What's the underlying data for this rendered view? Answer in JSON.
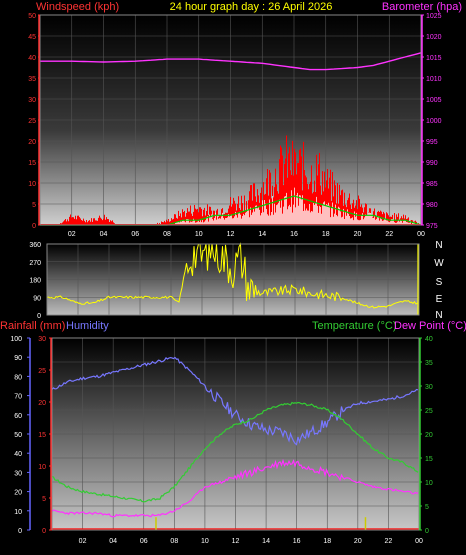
{
  "header": {
    "left_label": "Windspeed (kph)",
    "center_label": "24 hour graph day : 26 April 2026",
    "right_label": "Barometer (hpa)"
  },
  "bottom_header": {
    "rain_label": "Rainfall (mm)",
    "humidity_label": "Humidity",
    "temp_label": "Temperature (°C)",
    "dew_label": "Dew Point (°C)"
  },
  "colors": {
    "wind": "#ff0000",
    "gust": "#00cc00",
    "pressure": "#ff33ff",
    "direction": "#ffff00",
    "humidity": "#7777ff",
    "temperature": "#33cc33",
    "dewpoint": "#ff33ff",
    "rain_axis": "#ff3333",
    "hum_axis": "#6666ff",
    "temp_axis": "#33cc33",
    "bar": "#cccc00",
    "header_text": "#ffff00"
  },
  "chart_data": [
    {
      "type": "line",
      "name": "wind-pressure",
      "x_ticks": [
        "02",
        "04",
        "06",
        "08",
        "10",
        "12",
        "14",
        "16",
        "18",
        "20",
        "22",
        "00"
      ],
      "wind_axis": {
        "ylim": [
          0,
          50
        ],
        "ticks": [
          "0",
          "5",
          "10",
          "15",
          "20",
          "25",
          "30",
          "35",
          "40",
          "45",
          "50"
        ]
      },
      "pressure_axis": {
        "ylim": [
          975,
          1025
        ],
        "ticks": [
          "975",
          "980",
          "985",
          "990",
          "995",
          "1000",
          "1005",
          "1010",
          "1015",
          "1020",
          "1025"
        ]
      },
      "series": [
        {
          "name": "Barometer (hpa)",
          "x": [
            0,
            2,
            4,
            6,
            8,
            10,
            12,
            14,
            16,
            17,
            18,
            20,
            21,
            22,
            23,
            24
          ],
          "values": [
            1014,
            1014,
            1013.8,
            1014,
            1014.5,
            1014.5,
            1014,
            1013.5,
            1012.5,
            1012,
            1012,
            1012.5,
            1013,
            1014,
            1015,
            1016
          ]
        },
        {
          "name": "wind",
          "x": [
            0,
            1,
            2,
            3,
            4,
            5,
            6,
            7,
            8,
            9,
            10,
            11,
            12,
            13,
            14,
            15,
            15.5,
            16,
            16.5,
            17,
            17.5,
            18,
            19,
            20,
            21,
            22,
            23,
            24
          ],
          "values": [
            0,
            0,
            2,
            1,
            2,
            0,
            0,
            0,
            1,
            3,
            4,
            3,
            5,
            6,
            9,
            13,
            15,
            14,
            14,
            12,
            13,
            10,
            7,
            5,
            3,
            2,
            2,
            0
          ]
        },
        {
          "name": "gust",
          "x": [
            0,
            4,
            8,
            9,
            10,
            11,
            12,
            13,
            14,
            15,
            16,
            17,
            18,
            19,
            20,
            21,
            22,
            23,
            24
          ],
          "values": [
            0,
            0,
            0,
            1,
            1,
            2,
            2,
            3,
            4,
            5,
            6,
            5,
            4,
            3,
            2,
            2,
            1,
            1,
            0
          ]
        }
      ]
    },
    {
      "type": "line",
      "name": "wind-direction",
      "axis": {
        "ylim": [
          0,
          360
        ],
        "ticks": [
          "0",
          "90",
          "180",
          "270",
          "360"
        ],
        "compass": [
          "N",
          "W",
          "S",
          "E",
          "N"
        ]
      },
      "series": [
        {
          "name": "direction",
          "x": [
            0,
            1,
            2,
            3,
            4,
            5,
            6,
            7,
            8,
            8.5,
            9,
            9.5,
            10,
            10.5,
            11,
            11.5,
            12,
            12.5,
            13,
            13.5,
            14,
            15,
            16,
            17,
            18,
            19,
            20,
            21,
            22,
            23,
            24
          ],
          "values": [
            90,
            90,
            60,
            60,
            90,
            90,
            90,
            90,
            90,
            60,
            260,
            320,
            300,
            340,
            330,
            280,
            240,
            300,
            140,
            120,
            110,
            120,
            130,
            110,
            100,
            90,
            60,
            40,
            45,
            70,
            60
          ]
        }
      ]
    },
    {
      "type": "line",
      "name": "temp-hum-rain",
      "rain_axis": {
        "ylim": [
          0,
          30
        ],
        "ticks": [
          "0",
          "5",
          "10",
          "15",
          "20",
          "25",
          "30"
        ]
      },
      "humidity_axis": {
        "ylim": [
          0,
          100
        ],
        "ticks": [
          "0",
          "10",
          "20",
          "30",
          "40",
          "50",
          "60",
          "70",
          "80",
          "90",
          "100"
        ]
      },
      "temp_axis": {
        "ylim": [
          0,
          40
        ],
        "ticks": [
          "0",
          "5",
          "10",
          "15",
          "20",
          "25",
          "30",
          "35",
          "40"
        ]
      },
      "x_ticks": [
        "02",
        "04",
        "06",
        "08",
        "10",
        "12",
        "14",
        "16",
        "18",
        "20",
        "22",
        "00"
      ],
      "series": [
        {
          "name": "Humidity",
          "x": [
            0,
            1,
            2,
            3,
            4,
            5,
            6,
            7,
            8,
            9,
            10,
            11,
            12,
            13,
            14,
            15,
            16,
            17,
            18,
            19,
            20,
            21,
            22,
            23,
            24
          ],
          "values": [
            73,
            77,
            79,
            80,
            82,
            84,
            86,
            88,
            90,
            83,
            75,
            67,
            60,
            55,
            52,
            51,
            47,
            51,
            56,
            62,
            66,
            67,
            68,
            70,
            73
          ]
        },
        {
          "name": "Temperature (°C)",
          "x": [
            0,
            1,
            2,
            3,
            4,
            5,
            6,
            7,
            8,
            9,
            10,
            11,
            12,
            13,
            14,
            15,
            16,
            17,
            18,
            19,
            20,
            21,
            22,
            23,
            24
          ],
          "values": [
            11,
            9,
            8,
            7.5,
            7,
            6.5,
            6,
            6.5,
            9,
            13,
            17,
            20,
            22,
            23,
            25,
            26,
            26.5,
            26,
            25,
            23,
            20,
            17,
            15,
            14,
            12
          ]
        },
        {
          "name": "Dew Point (°C)",
          "x": [
            0,
            1,
            2,
            3,
            4,
            5,
            6,
            7,
            8,
            9,
            10,
            11,
            12,
            13,
            14,
            15,
            16,
            17,
            18,
            19,
            20,
            21,
            22,
            23,
            24
          ],
          "values": [
            4,
            3.5,
            3.5,
            3.5,
            3,
            3,
            3,
            3,
            4,
            6,
            9,
            10,
            11,
            12,
            13,
            14,
            14,
            13,
            12,
            11,
            10,
            9,
            8.5,
            8,
            7.5
          ]
        },
        {
          "name": "Rainfall (mm)",
          "x": [
            6.8,
            20.5
          ],
          "values": [
            2,
            2
          ]
        }
      ]
    }
  ]
}
